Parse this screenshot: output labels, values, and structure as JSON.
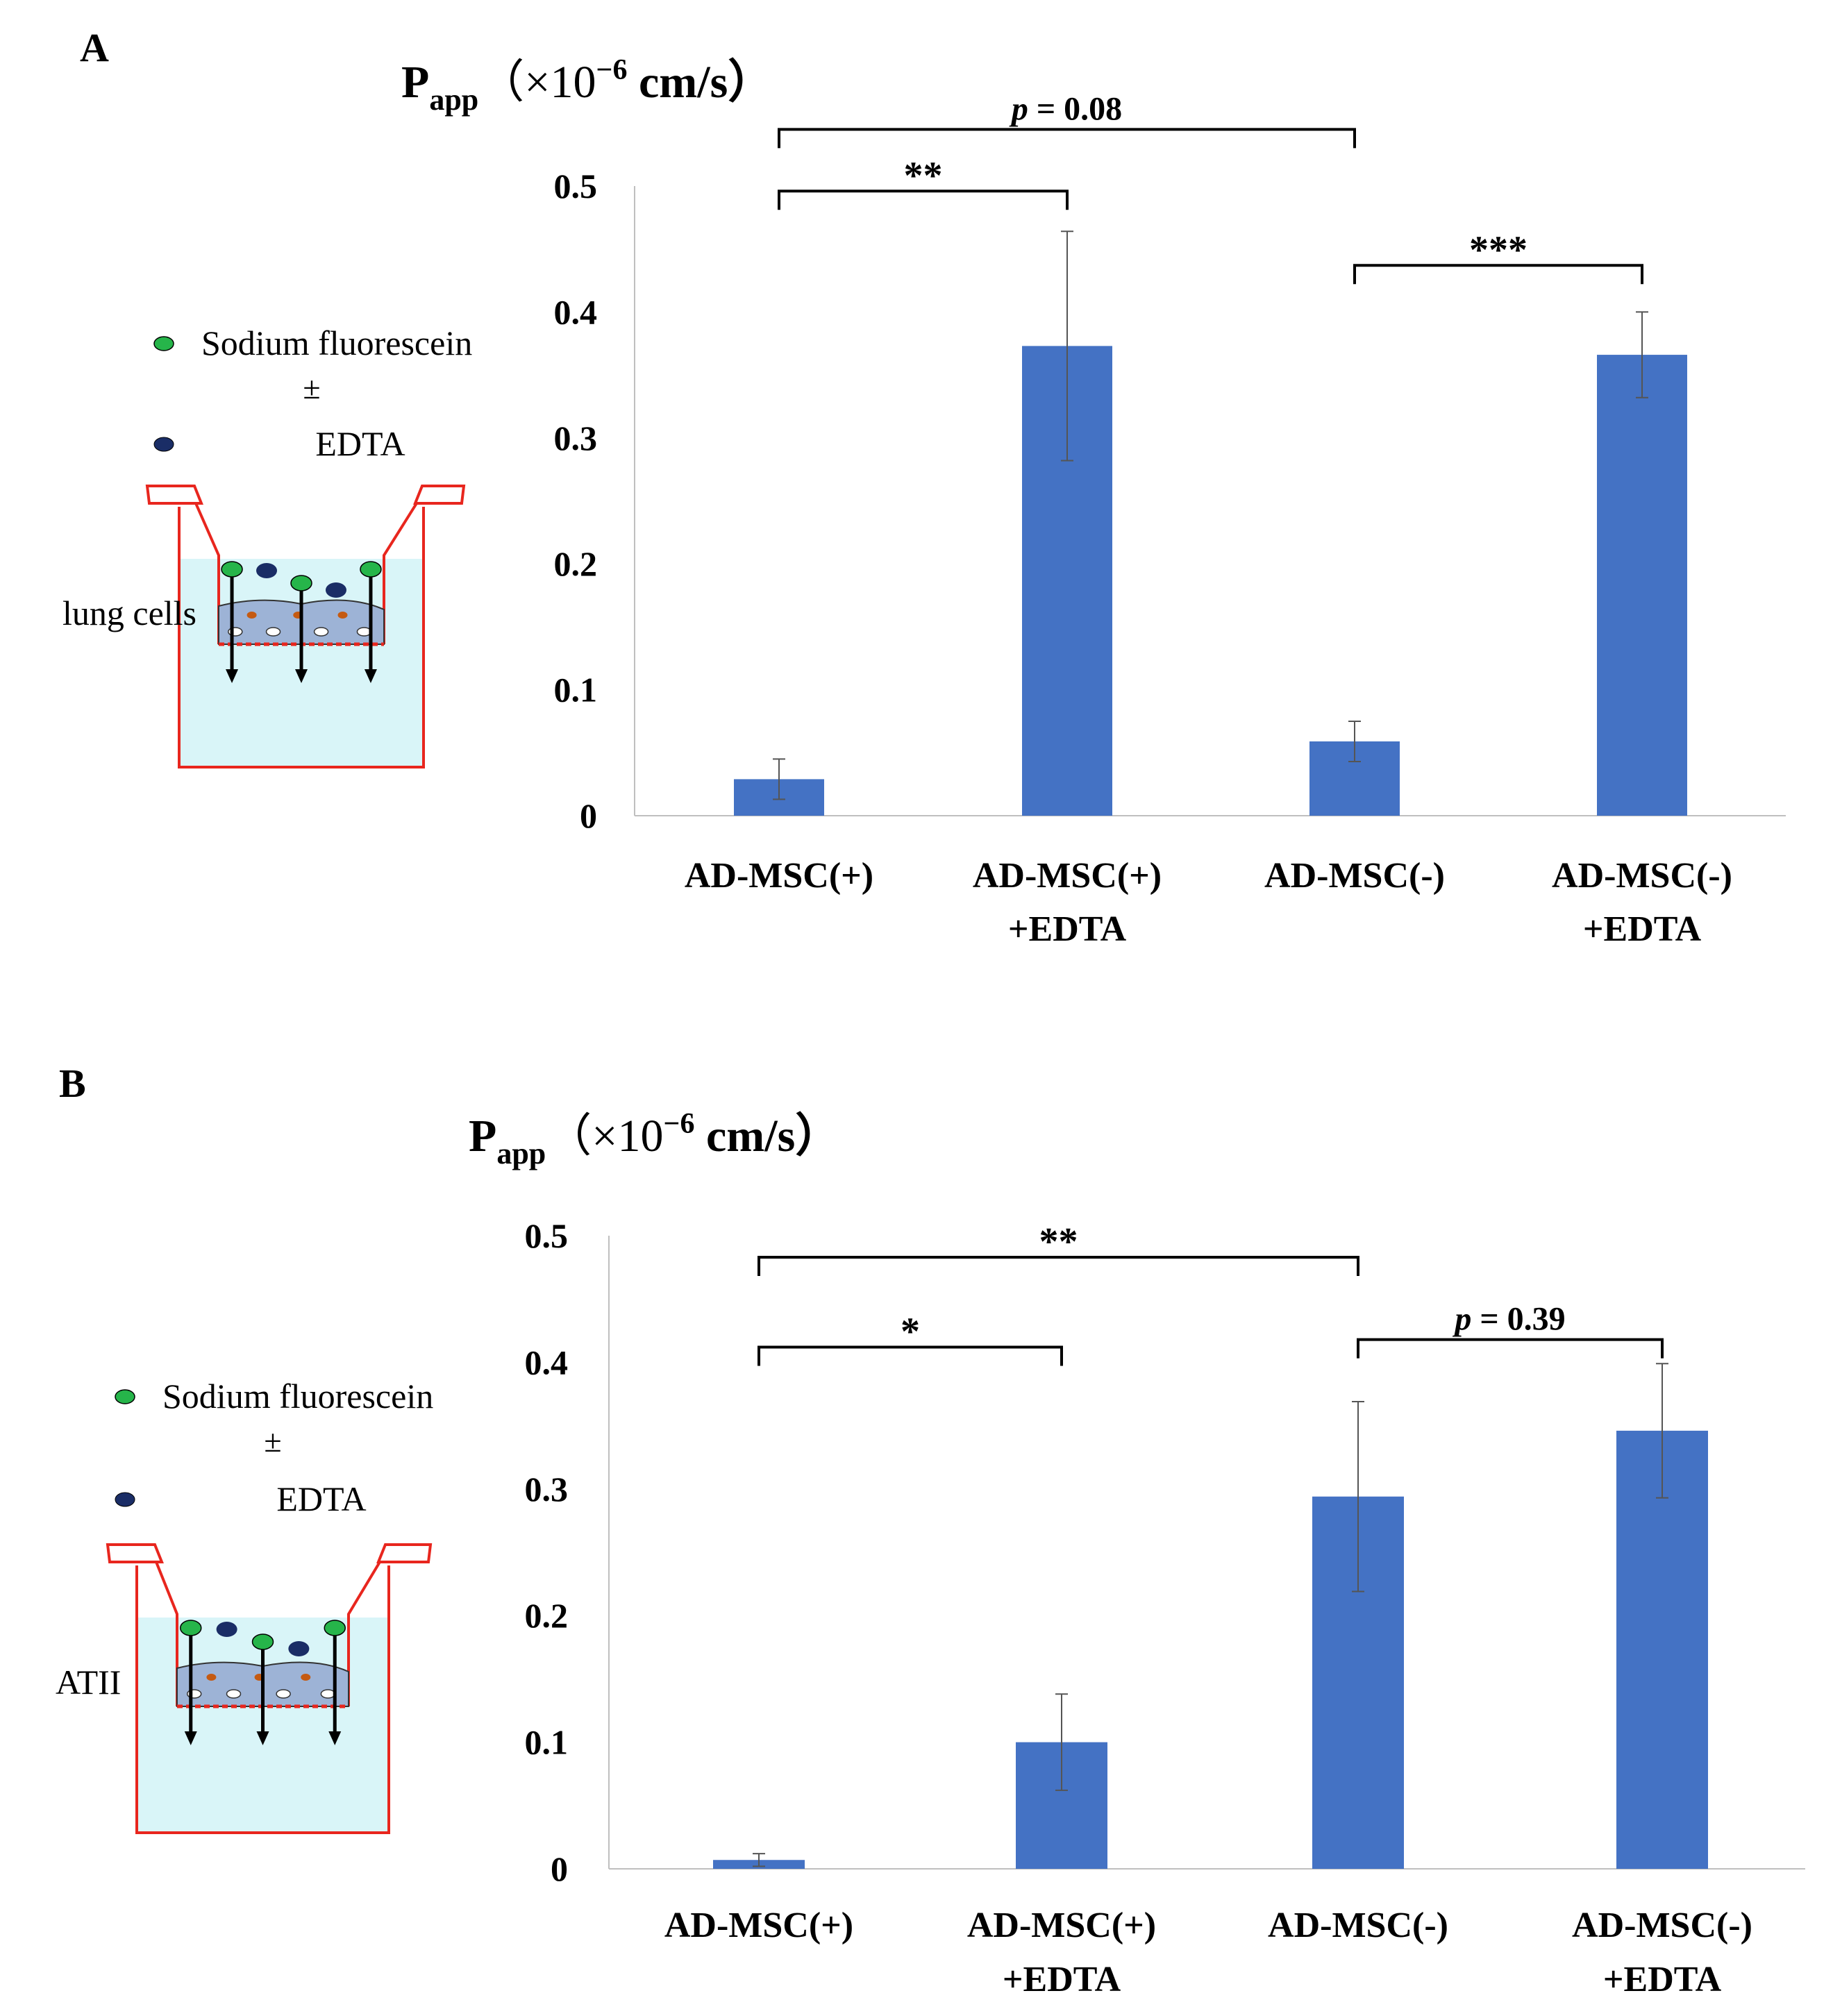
{
  "figure": {
    "panels": [
      {
        "id": "A",
        "label": "A",
        "ylabel": {
          "main": "P",
          "sub": "app",
          "unit": "（×10",
          "exp": "−6",
          "unit_tail": " cm/s）"
        },
        "schematic": {
          "marker_label": "Sodium fluorescein",
          "plus_minus": "±",
          "edta_label": "EDTA",
          "cells_label": "lung cells"
        },
        "significance": [
          {
            "from": 0,
            "to": 2,
            "level": 0.545,
            "label": "p = 0.08",
            "italic_p": true
          },
          {
            "from": 0,
            "to": 1,
            "level": 0.496,
            "label": "**"
          },
          {
            "from": 2,
            "to": 3,
            "level": 0.437,
            "label": "***"
          }
        ]
      },
      {
        "id": "B",
        "label": "B",
        "ylabel": {
          "main": "P",
          "sub": "app",
          "unit": "（×10",
          "exp": "−6",
          "unit_tail": " cm/s）"
        },
        "schematic": {
          "marker_label": "Sodium fluorescein",
          "plus_minus": "±",
          "edta_label": "EDTA",
          "cells_label": "ATII"
        },
        "significance": [
          {
            "from": 0,
            "to": 2,
            "level": 0.483,
            "label": "**"
          },
          {
            "from": 0,
            "to": 1,
            "level": 0.412,
            "label": "*"
          },
          {
            "from": 2,
            "to": 3,
            "level": 0.418,
            "label": "p = 0.39",
            "italic_p": true
          }
        ]
      }
    ],
    "colors": {
      "bar": "#4472c4",
      "schematic_red": "#e8261e",
      "medium": "#d9f5f8",
      "fluorescein": "#26b54a",
      "edta": "#1a2d66",
      "cells": "#9db3d6"
    }
  },
  "chart_data": [
    {
      "type": "bar",
      "panel": "A",
      "title": "",
      "xlabel": "",
      "ylabel": "Papp (×10−6 cm/s)",
      "categories": [
        "AD-MSC(+)",
        "AD-MSC(+)\n+EDTA",
        "AD-MSC(-)",
        "AD-MSC(-)\n+EDTA"
      ],
      "category_lines": [
        [
          "AD-MSC(+)"
        ],
        [
          "AD-MSC(+)",
          "+EDTA"
        ],
        [
          "AD-MSC(-)"
        ],
        [
          "AD-MSC(-)",
          "+EDTA"
        ]
      ],
      "values": [
        0.029,
        0.373,
        0.059,
        0.366
      ],
      "errors": [
        0.016,
        0.091,
        0.016,
        0.034
      ],
      "ylim": [
        0,
        0.5
      ],
      "yticks": [
        0,
        0.1,
        0.2,
        0.3,
        0.4,
        0.5
      ],
      "ytick_labels": [
        "0",
        "0.1",
        "0.2",
        "0.3",
        "0.4",
        "0.5"
      ],
      "grid": false
    },
    {
      "type": "bar",
      "panel": "B",
      "title": "",
      "xlabel": "",
      "ylabel": "Papp (×10−6 cm/s)",
      "categories": [
        "AD-MSC(+)",
        "AD-MSC(+)\n+EDTA",
        "AD-MSC(-)",
        "AD-MSC(-)\n+EDTA"
      ],
      "category_lines": [
        [
          "AD-MSC(+)"
        ],
        [
          "AD-MSC(+)",
          "+EDTA"
        ],
        [
          "AD-MSC(-)"
        ],
        [
          "AD-MSC(-)",
          "+EDTA"
        ]
      ],
      "values": [
        0.007,
        0.1,
        0.294,
        0.346
      ],
      "errors": [
        0.005,
        0.038,
        0.075,
        0.053
      ],
      "ylim": [
        0,
        0.5
      ],
      "yticks": [
        0,
        0.1,
        0.2,
        0.3,
        0.4,
        0.5
      ],
      "ytick_labels": [
        "0",
        "0.1",
        "0.2",
        "0.3",
        "0.4",
        "0.5"
      ],
      "grid": false
    }
  ]
}
